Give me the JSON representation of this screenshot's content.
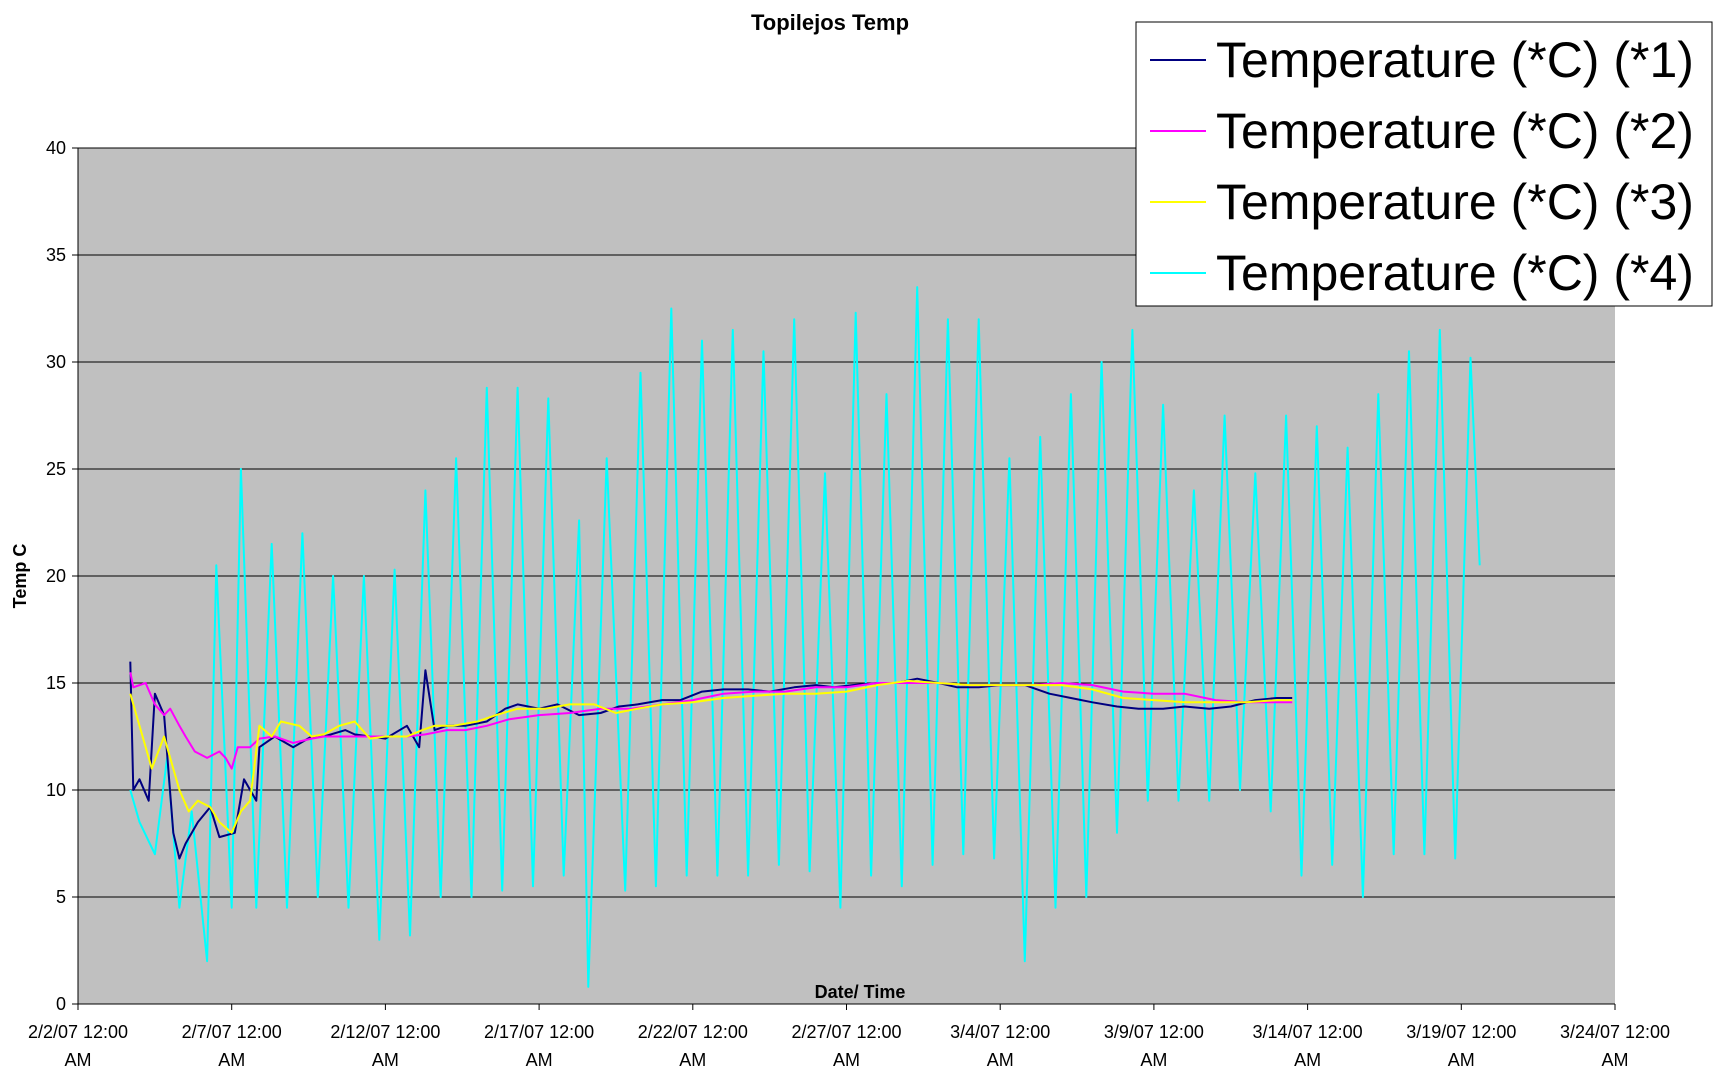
{
  "chart_data": {
    "type": "line",
    "title": "Topilejos Temp",
    "xlabel": "Date/ Time",
    "ylabel": "Temp C",
    "ylim": [
      0,
      40
    ],
    "yticks": [
      "0",
      "5",
      "10",
      "15",
      "20",
      "25",
      "30",
      "35",
      "40"
    ],
    "xlim": [
      "2/2/07 12:00 AM",
      "3/24/07 12:00 AM"
    ],
    "xticks": [
      {
        "line1": "2/2/07 12:00",
        "line2": "AM"
      },
      {
        "line1": "2/7/07 12:00",
        "line2": "AM"
      },
      {
        "line1": "2/12/07 12:00",
        "line2": "AM"
      },
      {
        "line1": "2/17/07 12:00",
        "line2": "AM"
      },
      {
        "line1": "2/22/07 12:00",
        "line2": "AM"
      },
      {
        "line1": "2/27/07 12:00",
        "line2": "AM"
      },
      {
        "line1": "3/4/07 12:00",
        "line2": "AM"
      },
      {
        "line1": "3/9/07 12:00",
        "line2": "AM"
      },
      {
        "line1": "3/14/07 12:00",
        "line2": "AM"
      },
      {
        "line1": "3/19/07 12:00",
        "line2": "AM"
      },
      {
        "line1": "3/24/07 12:00",
        "line2": "AM"
      }
    ],
    "grid": true,
    "plot_background": "#c0c0c0",
    "legend_position": "top-right",
    "series": [
      {
        "name": "Temperature (*C) (*1)",
        "color": "#000080",
        "points": [
          [
            1.7,
            16.0
          ],
          [
            1.8,
            10.0
          ],
          [
            2.0,
            10.5
          ],
          [
            2.3,
            9.5
          ],
          [
            2.5,
            14.5
          ],
          [
            2.8,
            13.5
          ],
          [
            3.1,
            8.0
          ],
          [
            3.3,
            6.8
          ],
          [
            3.5,
            7.5
          ],
          [
            3.9,
            8.5
          ],
          [
            4.3,
            9.2
          ],
          [
            4.6,
            7.8
          ],
          [
            5.1,
            8.0
          ],
          [
            5.4,
            10.5
          ],
          [
            5.8,
            9.5
          ],
          [
            5.9,
            12.0
          ],
          [
            6.4,
            12.5
          ],
          [
            7.0,
            12.0
          ],
          [
            7.6,
            12.5
          ],
          [
            8.0,
            12.5
          ],
          [
            8.7,
            12.8
          ],
          [
            9.0,
            12.6
          ],
          [
            9.5,
            12.5
          ],
          [
            10.0,
            12.4
          ],
          [
            10.7,
            13.0
          ],
          [
            11.1,
            12.0
          ],
          [
            11.3,
            15.6
          ],
          [
            11.6,
            12.8
          ],
          [
            12.0,
            13.0
          ],
          [
            12.6,
            13.0
          ],
          [
            13.3,
            13.2
          ],
          [
            13.9,
            13.8
          ],
          [
            14.3,
            14.0
          ],
          [
            15.0,
            13.8
          ],
          [
            15.6,
            14.0
          ],
          [
            16.3,
            13.5
          ],
          [
            17.0,
            13.6
          ],
          [
            17.6,
            13.9
          ],
          [
            18.2,
            14.0
          ],
          [
            19.0,
            14.2
          ],
          [
            19.6,
            14.2
          ],
          [
            20.3,
            14.6
          ],
          [
            21.0,
            14.7
          ],
          [
            21.8,
            14.7
          ],
          [
            22.5,
            14.6
          ],
          [
            23.3,
            14.8
          ],
          [
            24.0,
            14.9
          ],
          [
            24.6,
            14.8
          ],
          [
            25.2,
            14.9
          ],
          [
            26.0,
            15.0
          ],
          [
            26.6,
            15.0
          ],
          [
            27.3,
            15.2
          ],
          [
            28.0,
            15.0
          ],
          [
            28.6,
            14.8
          ],
          [
            29.3,
            14.8
          ],
          [
            30.0,
            14.9
          ],
          [
            30.8,
            14.9
          ],
          [
            31.6,
            14.5
          ],
          [
            32.3,
            14.3
          ],
          [
            33.0,
            14.1
          ],
          [
            33.8,
            13.9
          ],
          [
            34.5,
            13.8
          ],
          [
            35.3,
            13.8
          ],
          [
            36.0,
            13.9
          ],
          [
            36.8,
            13.8
          ],
          [
            37.5,
            13.9
          ],
          [
            38.3,
            14.2
          ],
          [
            39.0,
            14.3
          ],
          [
            39.5,
            14.3
          ]
        ]
      },
      {
        "name": "Temperature (*C) (*2)",
        "color": "#ff00ff",
        "points": [
          [
            1.7,
            15.5
          ],
          [
            1.8,
            14.8
          ],
          [
            2.2,
            15.0
          ],
          [
            2.5,
            14.0
          ],
          [
            2.8,
            13.5
          ],
          [
            3.0,
            13.8
          ],
          [
            3.3,
            13.0
          ],
          [
            3.5,
            12.5
          ],
          [
            3.8,
            11.8
          ],
          [
            4.2,
            11.5
          ],
          [
            4.6,
            11.8
          ],
          [
            4.8,
            11.5
          ],
          [
            5.0,
            11.0
          ],
          [
            5.2,
            12.0
          ],
          [
            5.6,
            12.0
          ],
          [
            5.9,
            12.4
          ],
          [
            6.4,
            12.5
          ],
          [
            7.0,
            12.2
          ],
          [
            7.6,
            12.4
          ],
          [
            8.0,
            12.5
          ],
          [
            9.0,
            12.5
          ],
          [
            10.0,
            12.5
          ],
          [
            10.7,
            12.5
          ],
          [
            11.3,
            12.6
          ],
          [
            12.0,
            12.8
          ],
          [
            12.6,
            12.8
          ],
          [
            13.3,
            13.0
          ],
          [
            14.0,
            13.3
          ],
          [
            15.0,
            13.5
          ],
          [
            16.0,
            13.6
          ],
          [
            17.0,
            13.8
          ],
          [
            18.0,
            13.8
          ],
          [
            19.0,
            14.0
          ],
          [
            20.0,
            14.2
          ],
          [
            21.0,
            14.5
          ],
          [
            22.0,
            14.6
          ],
          [
            23.0,
            14.6
          ],
          [
            24.0,
            14.8
          ],
          [
            25.0,
            14.8
          ],
          [
            26.0,
            15.0
          ],
          [
            27.0,
            15.0
          ],
          [
            28.0,
            15.0
          ],
          [
            29.0,
            14.9
          ],
          [
            30.0,
            14.9
          ],
          [
            31.0,
            14.9
          ],
          [
            32.0,
            15.0
          ],
          [
            33.0,
            14.9
          ],
          [
            34.0,
            14.6
          ],
          [
            35.0,
            14.5
          ],
          [
            36.0,
            14.5
          ],
          [
            37.0,
            14.2
          ],
          [
            38.0,
            14.1
          ],
          [
            39.0,
            14.1
          ],
          [
            39.5,
            14.1
          ]
        ]
      },
      {
        "name": "Temperature (*C) (*3)",
        "color": "#ffff00",
        "points": [
          [
            1.7,
            14.5
          ],
          [
            1.9,
            13.5
          ],
          [
            2.1,
            12.5
          ],
          [
            2.4,
            11.0
          ],
          [
            2.8,
            12.5
          ],
          [
            3.0,
            11.5
          ],
          [
            3.3,
            10.0
          ],
          [
            3.6,
            9.0
          ],
          [
            3.9,
            9.5
          ],
          [
            4.3,
            9.2
          ],
          [
            4.6,
            8.5
          ],
          [
            5.0,
            8.0
          ],
          [
            5.3,
            9.0
          ],
          [
            5.6,
            9.5
          ],
          [
            5.9,
            13.0
          ],
          [
            6.3,
            12.5
          ],
          [
            6.6,
            13.2
          ],
          [
            7.2,
            13.0
          ],
          [
            7.6,
            12.5
          ],
          [
            8.0,
            12.6
          ],
          [
            8.5,
            13.0
          ],
          [
            9.0,
            13.2
          ],
          [
            9.5,
            12.4
          ],
          [
            10.0,
            12.5
          ],
          [
            10.7,
            12.5
          ],
          [
            11.2,
            12.8
          ],
          [
            11.6,
            13.0
          ],
          [
            12.2,
            13.0
          ],
          [
            13.0,
            13.2
          ],
          [
            13.6,
            13.5
          ],
          [
            14.3,
            13.8
          ],
          [
            15.2,
            13.8
          ],
          [
            16.0,
            14.0
          ],
          [
            16.8,
            14.0
          ],
          [
            17.5,
            13.6
          ],
          [
            18.2,
            13.8
          ],
          [
            19.0,
            14.0
          ],
          [
            20.0,
            14.1
          ],
          [
            21.0,
            14.3
          ],
          [
            22.0,
            14.4
          ],
          [
            23.0,
            14.5
          ],
          [
            24.0,
            14.5
          ],
          [
            25.0,
            14.6
          ],
          [
            26.0,
            14.9
          ],
          [
            27.0,
            15.1
          ],
          [
            28.0,
            15.0
          ],
          [
            29.0,
            14.9
          ],
          [
            30.0,
            14.9
          ],
          [
            31.0,
            14.9
          ],
          [
            32.0,
            14.9
          ],
          [
            33.0,
            14.7
          ],
          [
            34.0,
            14.3
          ],
          [
            35.0,
            14.2
          ],
          [
            36.0,
            14.1
          ],
          [
            37.0,
            14.1
          ],
          [
            38.0,
            14.1
          ],
          [
            39.0,
            14.2
          ],
          [
            39.5,
            14.2
          ]
        ]
      },
      {
        "name": "Temperature (*C) (*4)",
        "color": "#00ffff",
        "points": [
          [
            1.7,
            10.0
          ],
          [
            2.0,
            8.5
          ],
          [
            2.5,
            7.0
          ],
          [
            2.9,
            11.5
          ],
          [
            3.3,
            4.5
          ],
          [
            3.7,
            9.0
          ],
          [
            4.2,
            2.0
          ],
          [
            4.5,
            20.5
          ],
          [
            5.0,
            4.5
          ],
          [
            5.3,
            25.0
          ],
          [
            5.8,
            4.5
          ],
          [
            6.3,
            21.5
          ],
          [
            6.8,
            4.5
          ],
          [
            7.3,
            22.0
          ],
          [
            7.8,
            5.0
          ],
          [
            8.3,
            20.0
          ],
          [
            8.8,
            4.5
          ],
          [
            9.3,
            20.0
          ],
          [
            9.8,
            3.0
          ],
          [
            10.3,
            20.3
          ],
          [
            10.8,
            3.2
          ],
          [
            11.3,
            24.0
          ],
          [
            11.8,
            5.0
          ],
          [
            12.3,
            25.5
          ],
          [
            12.8,
            5.0
          ],
          [
            13.3,
            28.8
          ],
          [
            13.8,
            5.3
          ],
          [
            14.3,
            28.8
          ],
          [
            14.8,
            5.5
          ],
          [
            15.3,
            28.3
          ],
          [
            15.8,
            6.0
          ],
          [
            16.3,
            22.6
          ],
          [
            16.6,
            0.8
          ],
          [
            17.2,
            25.5
          ],
          [
            17.8,
            5.3
          ],
          [
            18.3,
            29.5
          ],
          [
            18.8,
            5.5
          ],
          [
            19.3,
            32.5
          ],
          [
            19.8,
            6.0
          ],
          [
            20.3,
            31.0
          ],
          [
            20.8,
            6.0
          ],
          [
            21.3,
            31.5
          ],
          [
            21.8,
            6.0
          ],
          [
            22.3,
            30.5
          ],
          [
            22.8,
            6.5
          ],
          [
            23.3,
            32.0
          ],
          [
            23.8,
            6.2
          ],
          [
            24.3,
            24.8
          ],
          [
            24.8,
            4.5
          ],
          [
            25.3,
            32.3
          ],
          [
            25.8,
            6.0
          ],
          [
            26.3,
            28.5
          ],
          [
            26.8,
            5.5
          ],
          [
            27.3,
            33.5
          ],
          [
            27.8,
            6.5
          ],
          [
            28.3,
            32.0
          ],
          [
            28.8,
            7.0
          ],
          [
            29.3,
            32.0
          ],
          [
            29.8,
            6.8
          ],
          [
            30.3,
            25.5
          ],
          [
            30.8,
            2.0
          ],
          [
            31.3,
            26.5
          ],
          [
            31.8,
            4.5
          ],
          [
            32.3,
            28.5
          ],
          [
            32.8,
            5.0
          ],
          [
            33.3,
            30.0
          ],
          [
            33.8,
            8.0
          ],
          [
            34.3,
            31.5
          ],
          [
            34.8,
            9.5
          ],
          [
            35.3,
            28.0
          ],
          [
            35.8,
            9.5
          ],
          [
            36.3,
            24.0
          ],
          [
            36.8,
            9.5
          ],
          [
            37.3,
            27.5
          ],
          [
            37.8,
            10.0
          ],
          [
            38.3,
            24.8
          ],
          [
            38.8,
            9.0
          ],
          [
            39.3,
            27.5
          ],
          [
            39.8,
            6.0
          ],
          [
            40.3,
            27.0
          ],
          [
            40.8,
            6.5
          ],
          [
            41.3,
            26.0
          ],
          [
            41.8,
            5.0
          ],
          [
            42.3,
            28.5
          ],
          [
            42.8,
            7.0
          ],
          [
            43.3,
            30.5
          ],
          [
            43.8,
            7.0
          ],
          [
            44.3,
            31.5
          ],
          [
            44.8,
            6.8
          ],
          [
            45.3,
            30.2
          ],
          [
            45.6,
            20.5
          ]
        ]
      }
    ]
  }
}
